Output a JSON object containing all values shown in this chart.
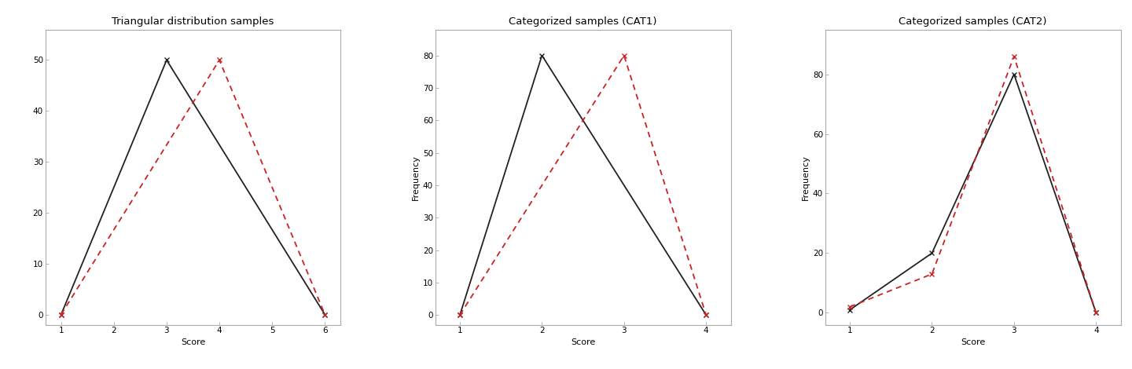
{
  "plot1": {
    "title": "Triangular distribution samples",
    "xlabel": "Score",
    "ylabel": "",
    "black_x": [
      1,
      3,
      6
    ],
    "black_y": [
      0,
      50,
      0
    ],
    "red_x": [
      1,
      4,
      6
    ],
    "red_y": [
      0,
      50,
      0
    ],
    "xlim": [
      0.7,
      6.3
    ],
    "ylim": [
      -2,
      56
    ],
    "xticks": [
      1,
      2,
      3,
      4,
      5,
      6
    ],
    "yticks": [
      0,
      10,
      20,
      30,
      40,
      50
    ],
    "ytick_labels": [
      "0",
      "10",
      "20",
      "30",
      "40",
      "50"
    ]
  },
  "plot2": {
    "title": "Categorized samples (CAT1)",
    "xlabel": "Score",
    "ylabel": "Frequency",
    "black_x": [
      1,
      2,
      4
    ],
    "black_y": [
      0,
      80,
      0
    ],
    "red_x": [
      1,
      3,
      4
    ],
    "red_y": [
      0,
      80,
      0
    ],
    "xlim": [
      0.7,
      4.3
    ],
    "ylim": [
      -3,
      88
    ],
    "xticks": [
      1,
      2,
      3,
      4
    ],
    "yticks": [
      0,
      10,
      20,
      30,
      40,
      50,
      60,
      70,
      80
    ],
    "ytick_labels": [
      "0",
      "10",
      "20",
      "30",
      "40",
      "50",
      "60",
      "70",
      "80"
    ]
  },
  "plot3": {
    "title": "Categorized samples (CAT2)",
    "xlabel": "Score",
    "ylabel": "Frequency",
    "black_x": [
      1,
      2,
      3,
      4
    ],
    "black_y": [
      1,
      20,
      80,
      0
    ],
    "red_x": [
      1,
      2,
      3,
      4
    ],
    "red_y": [
      2,
      13,
      86,
      0
    ],
    "xlim": [
      0.7,
      4.3
    ],
    "ylim": [
      -4,
      95
    ],
    "xticks": [
      1,
      2,
      3,
      4
    ],
    "yticks": [
      0,
      20,
      40,
      60,
      80
    ],
    "ytick_labels": [
      "0",
      "20",
      "40",
      "60",
      "80"
    ]
  },
  "black_color": "#222222",
  "red_color": "#cc2222",
  "line_width": 1.3,
  "bg_color": "#ffffff",
  "plot_bg": "#ffffff",
  "border_color": "#aaaaaa",
  "title_fontsize": 9.5,
  "label_fontsize": 8,
  "tick_fontsize": 7.5
}
